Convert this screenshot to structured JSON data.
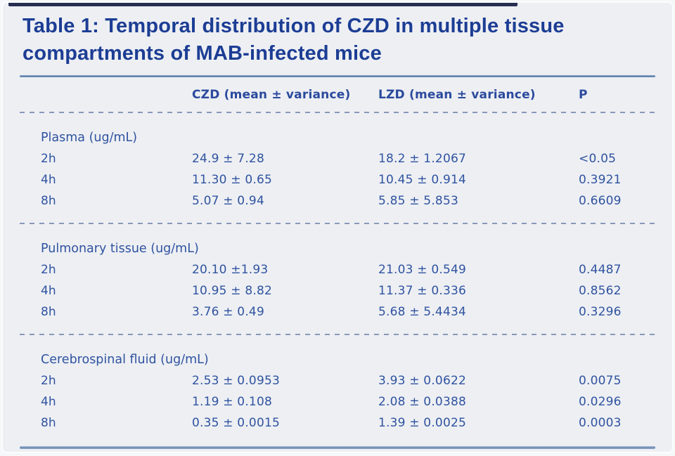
{
  "title": {
    "line1": "Table 1: Temporal distribution of CZD in multiple tissue",
    "line2": "compartments of MAB-infected mice"
  },
  "header": {
    "czd": "CZD (mean ± variance)",
    "lzd": "LZD (mean ± variance)",
    "p": "P"
  },
  "sections": [
    {
      "label": "Plasma (ug/mL)",
      "rows": [
        {
          "time": "2h",
          "czd": "24.9 ± 7.28",
          "lzd": "18.2 ± 1.2067",
          "p": "<0.05"
        },
        {
          "time": "4h",
          "czd": "11.30 ± 0.65",
          "lzd": "10.45 ± 0.914",
          "p": "0.3921"
        },
        {
          "time": "8h",
          "czd": "5.07 ± 0.94",
          "lzd": "5.85 ± 5.853",
          "p": "0.6609"
        }
      ]
    },
    {
      "label": "Pulmonary tissue (ug/mL)",
      "rows": [
        {
          "time": "2h",
          "czd": "20.10 ±1.93",
          "lzd": "21.03 ± 0.549",
          "p": "0.4487"
        },
        {
          "time": "4h",
          "czd": "10.95 ± 8.82",
          "lzd": "11.37 ± 0.336",
          "p": "0.8562"
        },
        {
          "time": "8h",
          "czd": "3.76 ± 0.49",
          "lzd": "5.68 ± 5.4434",
          "p": "0.3296"
        }
      ]
    },
    {
      "label": "Cerebrospinal fluid (ug/mL)",
      "rows": [
        {
          "time": "2h",
          "czd": "2.53 ± 0.0953",
          "lzd": "3.93 ± 0.0622",
          "p": "0.0075"
        },
        {
          "time": "4h",
          "czd": "1.19 ± 0.108",
          "lzd": "2.08 ± 0.0388",
          "p": "0.0296"
        },
        {
          "time": "8h",
          "czd": "0.35 ± 0.0015",
          "lzd": "1.39 ± 0.0025",
          "p": "0.0003"
        }
      ]
    }
  ],
  "colors": {
    "title_navy": "#1c3d94",
    "body_blue": "#3053a0",
    "header_blue": "#2b4a9d",
    "top_bar_navy": "#272e52",
    "solid_rule_blue": "#557aa9",
    "dashed_rule_blue": "#8a97b8",
    "background": "#edeff3"
  }
}
